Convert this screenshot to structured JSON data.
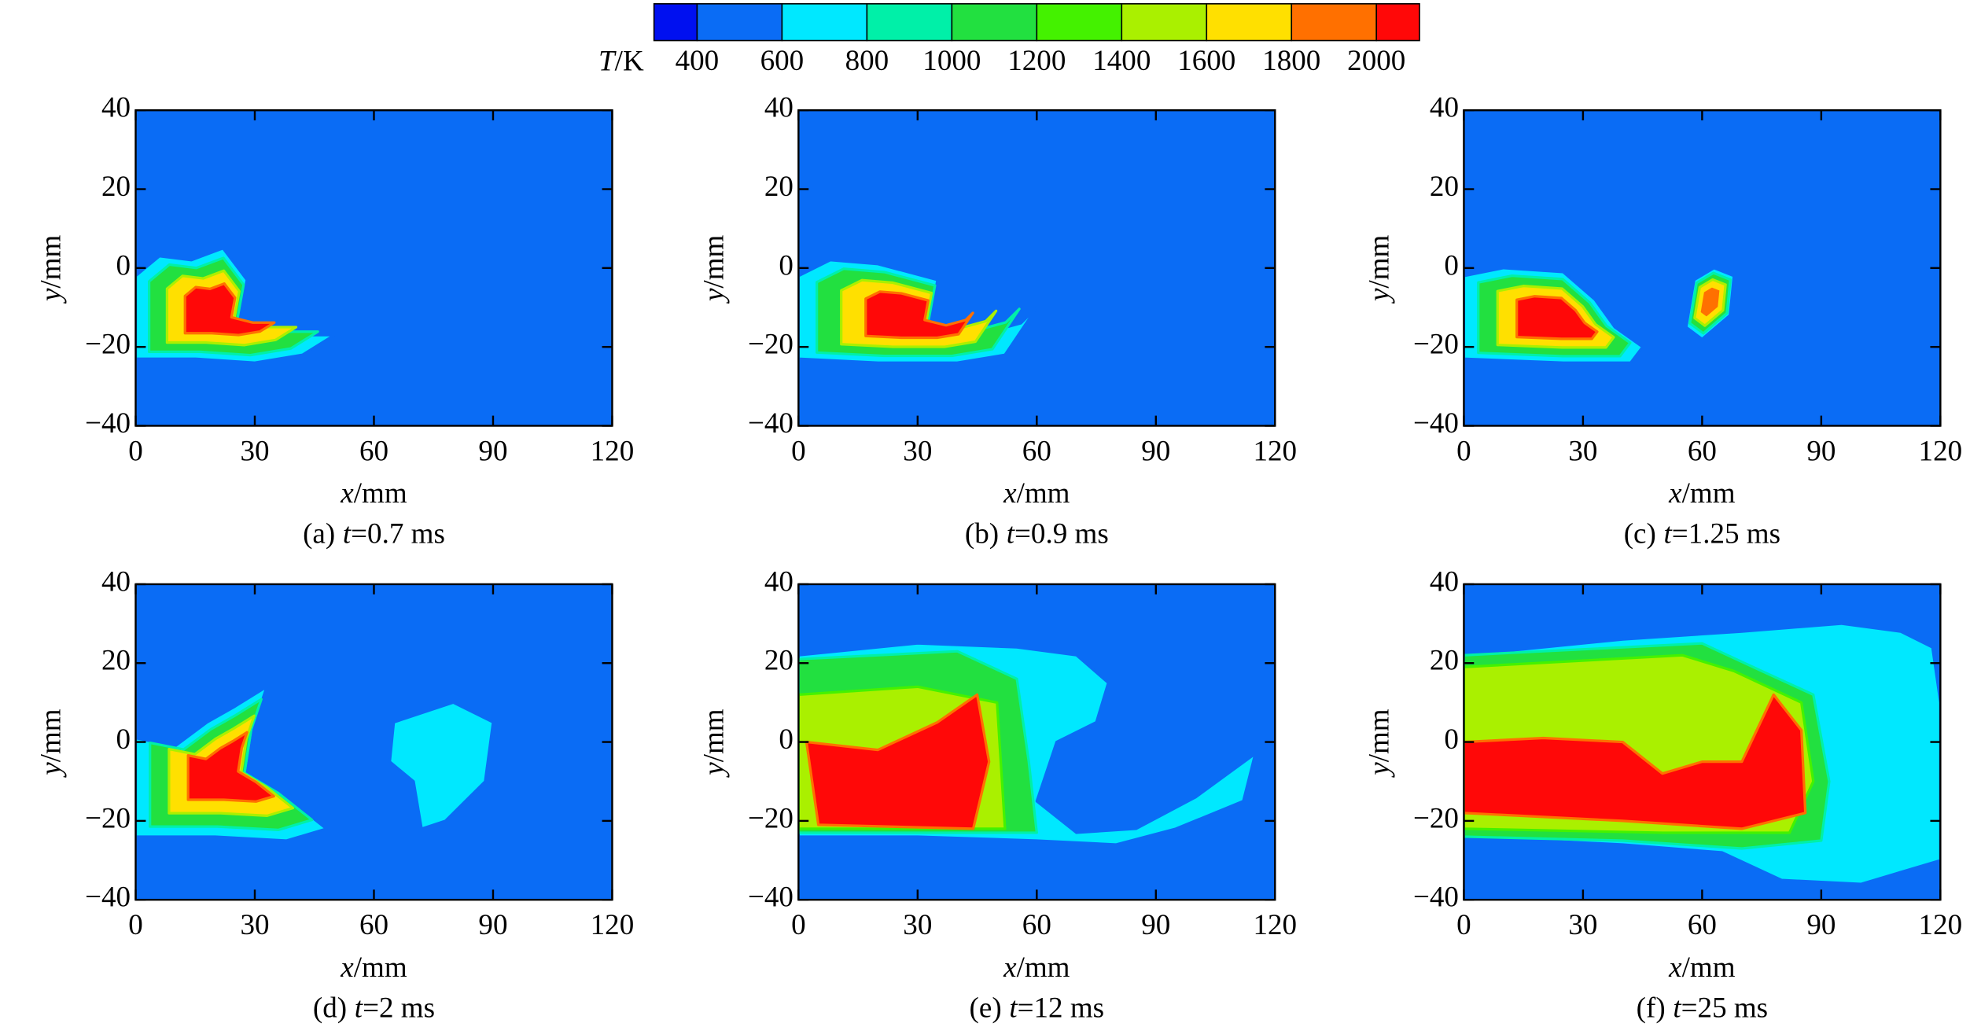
{
  "colorbar": {
    "label_var": "T",
    "label_unit": "/K",
    "colors": [
      "#0010f0",
      "#0a6cf5",
      "#00e8ff",
      "#00f0a8",
      "#22e040",
      "#44f200",
      "#aaf000",
      "#ffe000",
      "#ff7000",
      "#ff0808"
    ],
    "ticks": [
      400,
      600,
      800,
      1000,
      1200,
      1400,
      1600,
      1800,
      2000
    ]
  },
  "chart_data": [
    {
      "type": "contour",
      "caption_label": "(a)",
      "caption_var": "t",
      "caption_value": "=0.7 ms",
      "xlabel_var": "x",
      "xlabel_unit": "/mm",
      "ylabel_var": "y",
      "ylabel_unit": "/mm",
      "xlim": [
        0,
        120
      ],
      "ylim": [
        -40,
        40
      ],
      "xticks": [
        0,
        30,
        60,
        90,
        120
      ],
      "yticks": [
        {
          "value": -40,
          "label": "−40"
        },
        {
          "value": -20,
          "label": "−20"
        },
        0,
        20,
        40
      ]
    },
    {
      "type": "contour",
      "caption_label": "(b)",
      "caption_var": "t",
      "caption_value": "=0.9 ms",
      "xlabel_var": "x",
      "xlabel_unit": "/mm",
      "ylabel_var": "y",
      "ylabel_unit": "/mm",
      "xlim": [
        0,
        120
      ],
      "ylim": [
        -40,
        40
      ],
      "xticks": [
        0,
        30,
        60,
        90,
        120
      ],
      "yticks": [
        {
          "value": -40,
          "label": "−40"
        },
        {
          "value": -20,
          "label": "−20"
        },
        0,
        20,
        40
      ]
    },
    {
      "type": "contour",
      "caption_label": "(c)",
      "caption_var": "t",
      "caption_value": "=1.25 ms",
      "xlabel_var": "x",
      "xlabel_unit": "/mm",
      "ylabel_var": "y",
      "ylabel_unit": "/mm",
      "xlim": [
        0,
        120
      ],
      "ylim": [
        -40,
        40
      ],
      "xticks": [
        0,
        30,
        60,
        90,
        120
      ],
      "yticks": [
        {
          "value": -40,
          "label": "−40"
        },
        {
          "value": -20,
          "label": "−20"
        },
        0,
        20,
        40
      ]
    },
    {
      "type": "contour",
      "caption_label": "(d)",
      "caption_var": "t",
      "caption_value": "=2 ms",
      "xlabel_var": "x",
      "xlabel_unit": "/mm",
      "ylabel_var": "y",
      "ylabel_unit": "/mm",
      "xlim": [
        0,
        120
      ],
      "ylim": [
        -40,
        40
      ],
      "xticks": [
        0,
        30,
        60,
        90,
        120
      ],
      "yticks": [
        {
          "value": -40,
          "label": "−40"
        },
        {
          "value": -20,
          "label": "−20"
        },
        0,
        20,
        40
      ]
    },
    {
      "type": "contour",
      "caption_label": "(e)",
      "caption_var": "t",
      "caption_value": "=12 ms",
      "xlabel_var": "x",
      "xlabel_unit": "/mm",
      "ylabel_var": "y",
      "ylabel_unit": "/mm",
      "xlim": [
        0,
        120
      ],
      "ylim": [
        -40,
        40
      ],
      "xticks": [
        0,
        30,
        60,
        90,
        120
      ],
      "yticks": [
        {
          "value": -40,
          "label": "−40"
        },
        {
          "value": -20,
          "label": "−20"
        },
        0,
        20,
        40
      ]
    },
    {
      "type": "contour",
      "caption_label": "(f)",
      "caption_var": "t",
      "caption_value": "=25 ms",
      "xlabel_var": "x",
      "xlabel_unit": "/mm",
      "ylabel_var": "y",
      "ylabel_unit": "/mm",
      "xlim": [
        0,
        120
      ],
      "ylim": [
        -40,
        40
      ],
      "xticks": [
        0,
        30,
        60,
        90,
        120
      ],
      "yticks": [
        {
          "value": -40,
          "label": "−40"
        },
        {
          "value": -20,
          "label": "−20"
        },
        0,
        20,
        40
      ]
    }
  ]
}
